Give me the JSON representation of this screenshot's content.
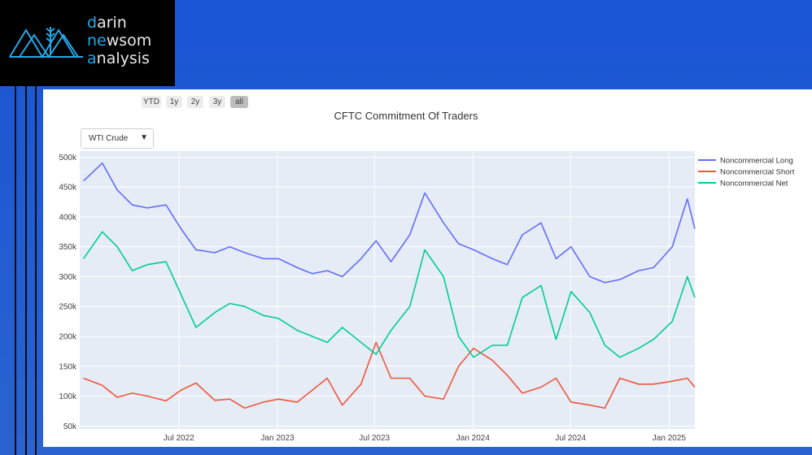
{
  "brand": {
    "lines": [
      {
        "first": "d",
        "rest": "arin"
      },
      {
        "first": "ne",
        "rest": "wsom"
      },
      {
        "first": "a",
        "rest": "nalysis"
      }
    ]
  },
  "range_buttons": [
    "YTD",
    "1y",
    "2y",
    "3y",
    "all"
  ],
  "dropdown": {
    "selected": "WTI Crude",
    "caret": "▼"
  },
  "colors": {
    "long": "#636efa",
    "short": "#ef553b",
    "net": "#00cc96",
    "plot_bg": "#e5ecf6",
    "accent": "#25a9e8"
  },
  "chart_data": {
    "type": "line",
    "title": "CFTC Commitment Of Traders",
    "xlabel": "",
    "ylabel": "",
    "x_ticks": [
      "Jul 2022",
      "Jan 2023",
      "Jul 2023",
      "Jan 2024",
      "Jul 2024",
      "Jan 2025"
    ],
    "y_ticks": [
      "50k",
      "100k",
      "150k",
      "200k",
      "250k",
      "300k",
      "350k",
      "400k",
      "450k",
      "500k"
    ],
    "ylim": [
      45000,
      510000
    ],
    "x": [
      "2022-01-04",
      "2022-02-08",
      "2022-03-08",
      "2022-04-05",
      "2022-05-03",
      "2022-06-07",
      "2022-07-05",
      "2022-08-02",
      "2022-09-06",
      "2022-10-04",
      "2022-11-01",
      "2022-12-06",
      "2023-01-03",
      "2023-02-07",
      "2023-03-07",
      "2023-04-04",
      "2023-05-02",
      "2023-06-06",
      "2023-07-04",
      "2023-08-01",
      "2023-09-05",
      "2023-10-03",
      "2023-11-07",
      "2023-12-05",
      "2024-01-02",
      "2024-02-06",
      "2024-03-05",
      "2024-04-02",
      "2024-05-07",
      "2024-06-04",
      "2024-07-02",
      "2024-08-06",
      "2024-09-03",
      "2024-10-01",
      "2024-11-05",
      "2024-12-03",
      "2025-01-07",
      "2025-02-04",
      "2025-02-18"
    ],
    "legend_position": "right",
    "grid": true,
    "series": [
      {
        "name": "Noncommercial Long",
        "values": [
          460000,
          490000,
          445000,
          420000,
          415000,
          420000,
          380000,
          345000,
          340000,
          350000,
          340000,
          330000,
          330000,
          315000,
          305000,
          310000,
          300000,
          330000,
          360000,
          325000,
          370000,
          440000,
          390000,
          355000,
          345000,
          330000,
          320000,
          370000,
          390000,
          330000,
          350000,
          300000,
          290000,
          295000,
          310000,
          315000,
          350000,
          430000,
          380000
        ]
      },
      {
        "name": "Noncommercial Short",
        "values": [
          130000,
          118000,
          98000,
          105000,
          100000,
          92000,
          110000,
          122000,
          93000,
          95000,
          80000,
          90000,
          95000,
          90000,
          110000,
          130000,
          85000,
          120000,
          190000,
          130000,
          130000,
          100000,
          95000,
          150000,
          180000,
          160000,
          135000,
          105000,
          115000,
          130000,
          90000,
          85000,
          80000,
          130000,
          120000,
          120000,
          125000,
          130000,
          115000
        ]
      },
      {
        "name": "Noncommercial Net",
        "values": [
          330000,
          375000,
          350000,
          310000,
          320000,
          325000,
          270000,
          215000,
          240000,
          255000,
          250000,
          235000,
          230000,
          210000,
          200000,
          190000,
          215000,
          190000,
          170000,
          210000,
          250000,
          345000,
          300000,
          200000,
          165000,
          185000,
          185000,
          265000,
          285000,
          195000,
          275000,
          240000,
          185000,
          165000,
          180000,
          195000,
          225000,
          300000,
          265000
        ]
      }
    ]
  }
}
